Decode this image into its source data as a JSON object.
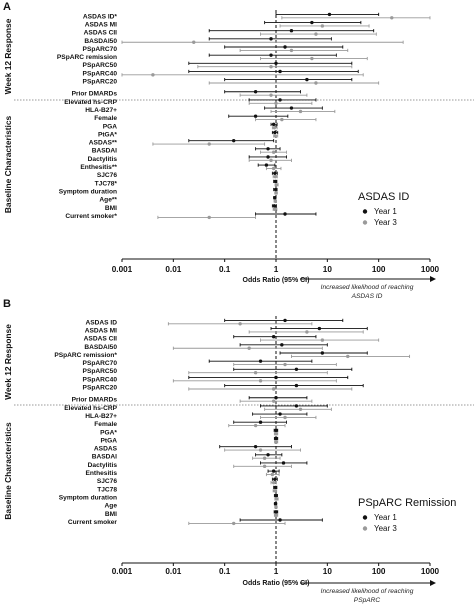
{
  "chart_data": [
    {
      "type": "forest",
      "panel_letter": "A",
      "xlabel": "Odds Ratio (95% CI)",
      "xscale": "log",
      "xlim": [
        0.001,
        1000
      ],
      "xticks": [
        "0.001",
        "0.01",
        "0.1",
        "1",
        "10",
        "100",
        "1000"
      ],
      "reference_line": 1,
      "arrow_note": "Increased likelihood of reaching ASDAS ID",
      "legend": {
        "title": "ASDAS ID",
        "items": [
          "Year 1",
          "Year 3"
        ],
        "colors": [
          "#111111",
          "#9a9a9a"
        ]
      },
      "groups": [
        {
          "name": "Week 12 Response",
          "rows": [
            0,
            8
          ]
        },
        {
          "name": "Baseline Characteristics",
          "rows": [
            9,
            26
          ]
        }
      ],
      "rows": [
        {
          "label": "ASDAS ID*",
          "y1": [
            11,
            1,
            100
          ],
          "y3": [
            180,
            1.3,
            999
          ]
        },
        {
          "label": "ASDAS MI",
          "y1": [
            5,
            0.6,
            45
          ],
          "y3": [
            8,
            1.2,
            65
          ]
        },
        {
          "label": "ASDAS CII",
          "y1": [
            2,
            0.05,
            80
          ],
          "y3": [
            6,
            0.5,
            90
          ]
        },
        {
          "label": "BASDAI50",
          "y1": [
            0.8,
            0.05,
            12
          ],
          "y3": [
            0.025,
            0.001,
            300
          ]
        },
        {
          "label": "PSpARC70",
          "y1": [
            1.5,
            0.1,
            20
          ],
          "y3": [
            2,
            0.2,
            25
          ]
        },
        {
          "label": "PSpARC remission",
          "y1": [
            0.8,
            0.05,
            15
          ],
          "y3": [
            5,
            0.5,
            60
          ]
        },
        {
          "label": "PSpARC50",
          "y1": [
            1,
            0.02,
            30
          ],
          "y3": [
            0.8,
            0.03,
            30
          ]
        },
        {
          "label": "PSpARC40",
          "y1": [
            1.2,
            0.02,
            40
          ],
          "y3": [
            0.004,
            0.001,
            50
          ]
        },
        {
          "label": "PSpARC20",
          "y1": [
            4,
            0.1,
            30
          ],
          "y3": [
            6,
            0.05,
            100
          ]
        },
        {
          "label": "Prior DMARDs",
          "y1": [
            0.4,
            0.1,
            3
          ],
          "y3": [
            0.8,
            0.2,
            4
          ]
        },
        {
          "label": "Elevated hs-CRP",
          "y1": [
            1.2,
            0.3,
            6
          ],
          "y3": [
            1,
            0.3,
            5
          ]
        },
        {
          "label": "HLA-B27+",
          "y1": [
            2,
            0.6,
            8
          ],
          "y3": [
            3,
            0.8,
            14
          ]
        },
        {
          "label": "Female",
          "y1": [
            0.4,
            0.12,
            1.7
          ],
          "y3": [
            1.3,
            0.4,
            6
          ]
        },
        {
          "label": "PGA",
          "y1": [
            0.9,
            0.8,
            1.05
          ],
          "y3": [
            0.93,
            0.85,
            1.05
          ]
        },
        {
          "label": "PtGA*",
          "y1": [
            0.95,
            0.85,
            1.08
          ],
          "y3": [
            0.97,
            0.9,
            1.08
          ]
        },
        {
          "label": "ASDAS**",
          "y1": [
            0.15,
            0.02,
            0.9
          ],
          "y3": [
            0.05,
            0.004,
            0.6
          ]
        },
        {
          "label": "BASDAI",
          "y1": [
            0.7,
            0.4,
            1.2
          ],
          "y3": [
            0.9,
            0.5,
            1.6
          ]
        },
        {
          "label": "Dactylitis",
          "y1": [
            0.7,
            0.3,
            1.6
          ],
          "y3": [
            0.8,
            0.3,
            2
          ]
        },
        {
          "label": "Enthesitis**",
          "y1": [
            0.65,
            0.45,
            0.95
          ],
          "y3": [
            0.9,
            0.65,
            1.25
          ]
        },
        {
          "label": "SJC76",
          "y1": [
            0.95,
            0.85,
            1.06
          ],
          "y3": [
            0.97,
            0.88,
            1.06
          ]
        },
        {
          "label": "TJC78*",
          "y1": [
            0.97,
            0.9,
            1.04
          ],
          "y3": [
            1.02,
            0.96,
            1.1
          ]
        },
        {
          "label": "Symptom duration",
          "y1": [
            0.98,
            0.9,
            1.05
          ],
          "y3": [
            1,
            0.95,
            1.06
          ]
        },
        {
          "label": "Age**",
          "y1": [
            0.95,
            0.9,
            0.99
          ],
          "y3": [
            0.97,
            0.92,
            1.02
          ]
        },
        {
          "label": "BMI",
          "y1": [
            0.93,
            0.85,
            1.02
          ],
          "y3": [
            0.95,
            0.88,
            1.04
          ]
        },
        {
          "label": "Current smoker*",
          "y1": [
            1.5,
            0.4,
            6
          ],
          "y3": [
            0.05,
            0.005,
            0.4
          ]
        }
      ]
    },
    {
      "type": "forest",
      "panel_letter": "B",
      "xlabel": "Odds Ratio (95% CI)",
      "xscale": "log",
      "xlim": [
        0.001,
        1000
      ],
      "xticks": [
        "0.001",
        "0.01",
        "0.1",
        "1",
        "10",
        "100",
        "1000"
      ],
      "reference_line": 1,
      "arrow_note": "Increased likelihood of reaching PSpARC",
      "legend": {
        "title": "PSpARC Remission",
        "items": [
          "Year 1",
          "Year 3"
        ],
        "colors": [
          "#111111",
          "#9a9a9a"
        ]
      },
      "groups": [
        {
          "name": "Week 12 Response",
          "rows": [
            0,
            8
          ]
        },
        {
          "name": "Baseline Characteristics",
          "rows": [
            9,
            26
          ]
        }
      ],
      "rows": [
        {
          "label": "ASDAS ID",
          "y1": [
            1.5,
            0.1,
            20
          ],
          "y3": [
            0.2,
            0.008,
            5
          ]
        },
        {
          "label": "ASDAS MI",
          "y1": [
            7,
            0.8,
            60
          ],
          "y3": [
            4,
            0.3,
            50
          ]
        },
        {
          "label": "ASDAS CII",
          "y1": [
            0.9,
            0.15,
            6
          ],
          "y3": [
            8,
            0.5,
            100
          ]
        },
        {
          "label": "BASDAI50",
          "y1": [
            1.3,
            0.2,
            10
          ],
          "y3": [
            0.3,
            0.01,
            8
          ]
        },
        {
          "label": "PSpARC remission*",
          "y1": [
            8,
            1.2,
            60
          ],
          "y3": [
            25,
            2,
            400
          ]
        },
        {
          "label": "PSpARC70",
          "y1": [
            0.5,
            0.05,
            5
          ],
          "y3": [
            1.5,
            0.15,
            15
          ]
        },
        {
          "label": "PSpARC50",
          "y1": [
            2.5,
            0.15,
            30
          ],
          "y3": [
            0.4,
            0.02,
            10
          ]
        },
        {
          "label": "PSpARC40",
          "y1": [
            1,
            0.02,
            25
          ],
          "y3": [
            0.5,
            0.01,
            15
          ]
        },
        {
          "label": "PSpARC20",
          "y1": [
            2.5,
            0.1,
            50
          ],
          "y3": [
            0.9,
            0.02,
            30
          ]
        },
        {
          "label": "Prior DMARDs",
          "y1": [
            1,
            0.3,
            4
          ],
          "y3": [
            0.9,
            0.2,
            5
          ]
        },
        {
          "label": "Elevated hs-CRP",
          "y1": [
            2.5,
            0.5,
            10
          ],
          "y3": [
            3,
            0.6,
            12
          ]
        },
        {
          "label": "HLA-B27+",
          "y1": [
            1.2,
            0.35,
            4
          ],
          "y3": [
            1.5,
            0.5,
            6
          ]
        },
        {
          "label": "Female",
          "y1": [
            0.5,
            0.15,
            1.6
          ],
          "y3": [
            0.4,
            0.12,
            1.5
          ]
        },
        {
          "label": "PGA*",
          "y1": [
            1,
            0.92,
            1.08
          ],
          "y3": [
            1,
            0.93,
            1.08
          ]
        },
        {
          "label": "PtGA",
          "y1": [
            1,
            0.93,
            1.08
          ],
          "y3": [
            1,
            0.94,
            1.08
          ]
        },
        {
          "label": "ASDAS",
          "y1": [
            0.4,
            0.08,
            2
          ],
          "y3": [
            0.5,
            0.1,
            3
          ]
        },
        {
          "label": "BASDAI",
          "y1": [
            0.7,
            0.4,
            1.3
          ],
          "y3": [
            0.6,
            0.35,
            1.2
          ]
        },
        {
          "label": "Dactylitis",
          "y1": [
            1.4,
            0.5,
            4
          ],
          "y3": [
            0.6,
            0.15,
            2
          ]
        },
        {
          "label": "Enthesitis",
          "y1": [
            0.9,
            0.7,
            1.15
          ],
          "y3": [
            0.85,
            0.65,
            1.15
          ]
        },
        {
          "label": "SJC76",
          "y1": [
            0.95,
            0.85,
            1.06
          ],
          "y3": [
            0.9,
            0.8,
            1.02
          ]
        },
        {
          "label": "TJC78",
          "y1": [
            0.97,
            0.9,
            1.04
          ],
          "y3": [
            0.95,
            0.88,
            1.03
          ]
        },
        {
          "label": "Symptom duration",
          "y1": [
            1,
            0.93,
            1.07
          ],
          "y3": [
            1.02,
            0.95,
            1.1
          ]
        },
        {
          "label": "Age",
          "y1": [
            0.98,
            0.93,
            1.03
          ],
          "y3": [
            1,
            0.95,
            1.05
          ]
        },
        {
          "label": "BMI",
          "y1": [
            1,
            0.92,
            1.08
          ],
          "y3": [
            1,
            0.93,
            1.08
          ]
        },
        {
          "label": "Current smoker",
          "y1": [
            1.2,
            0.2,
            8
          ],
          "y3": [
            0.15,
            0.02,
            1.5
          ]
        }
      ]
    }
  ]
}
